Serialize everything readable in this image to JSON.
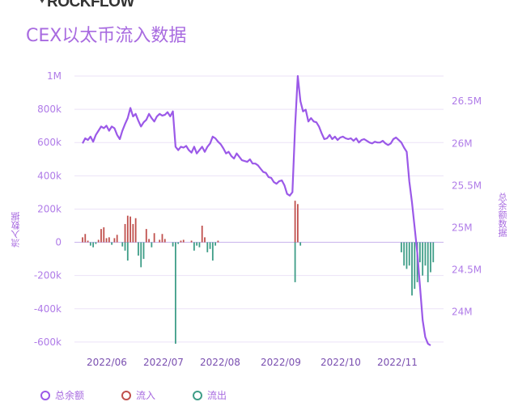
{
  "brand": {
    "name": "ROCKFLOW"
  },
  "chart_data": {
    "type": "bar+line",
    "title": "CEX以太币流入数据",
    "y_left": {
      "label": "流入数据",
      "ticks": [
        {
          "v": 1000000,
          "t": "1M"
        },
        {
          "v": 800000,
          "t": "800k"
        },
        {
          "v": 600000,
          "t": "600k"
        },
        {
          "v": 400000,
          "t": "400k"
        },
        {
          "v": 200000,
          "t": "200k"
        },
        {
          "v": 0,
          "t": "0"
        },
        {
          "v": -200000,
          "t": "-200k"
        },
        {
          "v": -400000,
          "t": "-400k"
        },
        {
          "v": -600000,
          "t": "-600k"
        }
      ],
      "range": [
        -620000,
        1000000
      ]
    },
    "y_right": {
      "label": "总余额数据",
      "ticks": [
        {
          "v": 26500000,
          "t": "26.5M"
        },
        {
          "v": 26000000,
          "t": "26M"
        },
        {
          "v": 25500000,
          "t": "25.5M"
        },
        {
          "v": 25000000,
          "t": "25M"
        },
        {
          "v": 24500000,
          "t": "24.5M"
        },
        {
          "v": 24000000,
          "t": "24M"
        }
      ],
      "range": [
        23600000,
        26800000
      ]
    },
    "x_ticks": [
      "2022/06",
      "2022/07",
      "2022/08",
      "2022/09",
      "2022/10",
      "2022/11"
    ],
    "x_range_days": 132,
    "x_tick_days": [
      31,
      61,
      92,
      123,
      153,
      184
    ],
    "x_start_label": "2022/05/20",
    "series": [
      {
        "name": "总余额",
        "kind": "line",
        "color": "#9b59e8",
        "values": [
          26000000,
          26060000,
          26040000,
          26080000,
          26020000,
          26100000,
          26150000,
          26200000,
          26180000,
          26210000,
          26150000,
          26200000,
          26180000,
          26100000,
          26050000,
          26150000,
          26230000,
          26300000,
          26420000,
          26320000,
          26350000,
          26270000,
          26200000,
          26250000,
          26280000,
          26350000,
          26300000,
          26260000,
          26320000,
          26350000,
          26330000,
          26340000,
          26370000,
          26320000,
          26380000,
          25960000,
          25920000,
          25960000,
          25950000,
          25970000,
          25920000,
          25890000,
          25960000,
          25880000,
          25920000,
          25960000,
          25900000,
          25960000,
          26000000,
          26080000,
          26060000,
          26020000,
          25990000,
          25940000,
          25880000,
          25900000,
          25850000,
          25820000,
          25880000,
          25840000,
          25800000,
          25790000,
          25780000,
          25810000,
          25760000,
          25760000,
          25740000,
          25700000,
          25660000,
          25650000,
          25600000,
          25590000,
          25540000,
          25520000,
          25550000,
          25560000,
          25500000,
          25400000,
          25380000,
          25420000,
          26200000,
          26800000,
          26500000,
          26380000,
          26400000,
          26260000,
          26300000,
          26260000,
          26250000,
          26200000,
          26120000,
          26050000,
          26060000,
          26100000,
          26050000,
          26080000,
          26040000,
          26070000,
          26080000,
          26060000,
          26050000,
          26060000,
          26030000,
          26060000,
          26010000,
          26040000,
          26050000,
          26030000,
          26010000,
          26000000,
          26020000,
          26010000,
          26010000,
          26030000,
          26000000,
          25980000,
          26000000,
          26050000,
          26070000,
          26040000,
          26010000,
          25950000,
          25900000,
          25550000,
          25300000,
          25000000,
          24700000,
          24300000,
          23900000,
          23700000,
          23620000,
          23600000
        ]
      },
      {
        "name": "流入",
        "kind": "bar",
        "color": "#c0504d",
        "values": [
          30000,
          50000,
          10000,
          0,
          0,
          0,
          15000,
          80000,
          90000,
          25000,
          30000,
          0,
          25000,
          45000,
          0,
          0,
          110000,
          160000,
          155000,
          110000,
          145000,
          0,
          0,
          0,
          80000,
          20000,
          0,
          55000,
          0,
          15000,
          50000,
          20000,
          0,
          0,
          0,
          0,
          0,
          10000,
          15000,
          0,
          0,
          10000,
          0,
          0,
          0,
          100000,
          30000,
          0,
          0,
          0,
          0,
          10000,
          0,
          0,
          0,
          0,
          0,
          0,
          0,
          0,
          0,
          0,
          0,
          0,
          0,
          0,
          0,
          0,
          0,
          0,
          0,
          0,
          0,
          0,
          0,
          0,
          0,
          0,
          0,
          0,
          250000,
          230000,
          0,
          0,
          0,
          0,
          0,
          0,
          0,
          0,
          0,
          0,
          0,
          0,
          0,
          0,
          0,
          0,
          0,
          0,
          0,
          0,
          0,
          0,
          0,
          0,
          0,
          0,
          0,
          0,
          0,
          0,
          0,
          0,
          0,
          0,
          0,
          0,
          0,
          0,
          0,
          0,
          0,
          0,
          0,
          0,
          0,
          0,
          0,
          0,
          0,
          0,
          0,
          0
        ]
      },
      {
        "name": "流出",
        "kind": "bar",
        "color": "#3e9d87",
        "values": [
          0,
          0,
          0,
          -20000,
          -30000,
          -10000,
          0,
          0,
          0,
          0,
          0,
          -15000,
          0,
          0,
          0,
          -25000,
          -50000,
          -110000,
          0,
          0,
          0,
          -80000,
          -150000,
          -100000,
          0,
          0,
          -30000,
          0,
          0,
          0,
          0,
          0,
          0,
          0,
          -25000,
          -610000,
          -10000,
          0,
          0,
          0,
          0,
          0,
          -50000,
          -20000,
          -30000,
          0,
          0,
          -60000,
          -40000,
          -110000,
          -20000,
          0,
          0,
          0,
          0,
          0,
          0,
          0,
          0,
          0,
          0,
          0,
          0,
          0,
          0,
          0,
          0,
          0,
          0,
          0,
          0,
          0,
          0,
          0,
          0,
          0,
          0,
          0,
          0,
          0,
          -240000,
          0,
          -20000,
          0,
          0,
          0,
          0,
          0,
          0,
          0,
          0,
          0,
          0,
          0,
          0,
          0,
          0,
          0,
          0,
          0,
          0,
          0,
          0,
          0,
          0,
          0,
          0,
          0,
          0,
          0,
          0,
          0,
          0,
          0,
          0,
          0,
          0,
          0,
          0,
          0,
          -60000,
          -140000,
          -160000,
          -140000,
          -320000,
          -280000,
          -240000,
          -120000,
          -200000,
          -140000,
          -240000,
          -180000,
          -120000
        ]
      }
    ],
    "legend": [
      {
        "label": "总余额",
        "color": "#9b59e8"
      },
      {
        "label": "流入",
        "color": "#c0504d"
      },
      {
        "label": "流出",
        "color": "#3e9d87"
      }
    ],
    "grid": true,
    "legend_position": "bottom"
  }
}
